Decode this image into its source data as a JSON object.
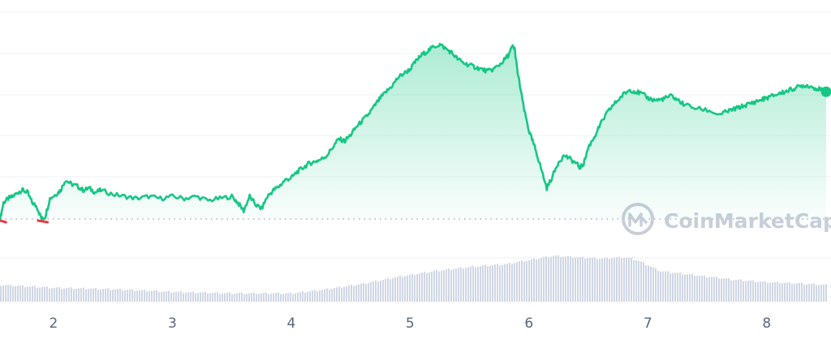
{
  "watermark": {
    "brand": "CoinMarketCap",
    "icon": "coinmarketcap-logo-icon"
  },
  "colors": {
    "price_line": "#16c784",
    "price_below": "#ea3943",
    "area_fill_top": "#16c784",
    "volume_bar": "#cfd6e4",
    "gridline": "#eff2f5",
    "baseline_dots": "#a6b0c3",
    "tick_label": "#58667e",
    "watermark": "#c7ced9"
  },
  "chart_data": {
    "type": "line",
    "title": "",
    "xlabel": "",
    "ylabel": "",
    "x_ticks": [
      "2",
      "3",
      "4",
      "5",
      "6",
      "7",
      "8"
    ],
    "xlim": [
      1.55,
      8.5
    ],
    "ylim": [
      0,
      100
    ],
    "grid": true,
    "baseline_value": 17,
    "series": [
      {
        "role": "price",
        "x": [
          1.55,
          1.58,
          1.62,
          1.66,
          1.7,
          1.74,
          1.78,
          1.82,
          1.86,
          1.9,
          1.93,
          1.97,
          2.02,
          2.06,
          2.1,
          2.15,
          2.2,
          2.25,
          2.3,
          2.35,
          2.4,
          2.5,
          2.6,
          2.7,
          2.8,
          2.9,
          3.0,
          3.1,
          3.2,
          3.3,
          3.4,
          3.5,
          3.55,
          3.6,
          3.65,
          3.7,
          3.75,
          3.8,
          3.85,
          3.9,
          3.95,
          4.0,
          4.05,
          4.1,
          4.15,
          4.2,
          4.25,
          4.3,
          4.35,
          4.4,
          4.45,
          4.5,
          4.55,
          4.6,
          4.65,
          4.7,
          4.75,
          4.8,
          4.85,
          4.9,
          4.95,
          5.0,
          5.05,
          5.1,
          5.15,
          5.2,
          5.25,
          5.3,
          5.35,
          5.4,
          5.45,
          5.5,
          5.55,
          5.6,
          5.65,
          5.7,
          5.75,
          5.8,
          5.83,
          5.86,
          5.88,
          5.9,
          5.93,
          5.96,
          6.0,
          6.03,
          6.06,
          6.1,
          6.15,
          6.2,
          6.25,
          6.3,
          6.35,
          6.4,
          6.43,
          6.46,
          6.5,
          6.55,
          6.6,
          6.65,
          6.7,
          6.75,
          6.8,
          6.85,
          6.9,
          6.95,
          7.0,
          7.05,
          7.1,
          7.15,
          7.2,
          7.25,
          7.3,
          7.4,
          7.5,
          7.6,
          7.65,
          7.7,
          7.75,
          7.8,
          7.85,
          7.9,
          7.95,
          8.0,
          8.05,
          8.1,
          8.15,
          8.2,
          8.25,
          8.3,
          8.35,
          8.4,
          8.45,
          8.5
        ],
        "values": [
          17,
          25,
          27,
          28,
          30,
          31,
          30,
          25,
          23,
          17,
          18,
          27,
          29,
          31,
          36,
          34,
          33,
          31,
          32,
          30,
          31,
          29,
          28,
          27,
          28,
          27,
          28,
          27,
          28,
          26,
          27,
          28,
          25,
          21,
          28,
          24,
          22,
          28,
          31,
          33,
          36,
          37,
          40,
          42,
          44,
          45,
          46,
          48,
          52,
          56,
          55,
          58,
          62,
          65,
          68,
          72,
          76,
          79,
          82,
          86,
          88,
          90,
          94,
          97,
          99,
          101,
          102,
          100,
          98,
          95,
          93,
          92,
          91,
          90,
          89,
          90,
          92,
          95,
          97,
          101,
          100,
          90,
          80,
          70,
          60,
          55,
          50,
          42,
          32,
          38,
          45,
          48,
          46,
          44,
          42,
          44,
          52,
          57,
          63,
          68,
          72,
          75,
          78,
          80,
          79,
          78,
          76,
          75,
          75,
          76,
          77,
          75,
          73,
          71,
          70,
          68,
          69,
          70,
          71,
          72,
          73,
          74,
          75,
          76,
          77,
          78,
          79,
          80,
          81,
          82,
          82,
          81,
          80,
          79
        ]
      },
      {
        "role": "volume",
        "x": [
          1.55,
          2.0,
          2.5,
          3.0,
          3.5,
          4.0,
          4.3,
          4.6,
          4.9,
          5.2,
          5.5,
          5.8,
          6.0,
          6.2,
          6.4,
          6.6,
          6.8,
          6.9,
          7.1,
          7.4,
          7.7,
          8.0,
          8.3,
          8.5
        ],
        "values": [
          12,
          10,
          9,
          7,
          6,
          6,
          9,
          13,
          18,
          22,
          25,
          27,
          30,
          33,
          32,
          31,
          32,
          30,
          22,
          19,
          16,
          14,
          13,
          12
        ]
      }
    ]
  }
}
